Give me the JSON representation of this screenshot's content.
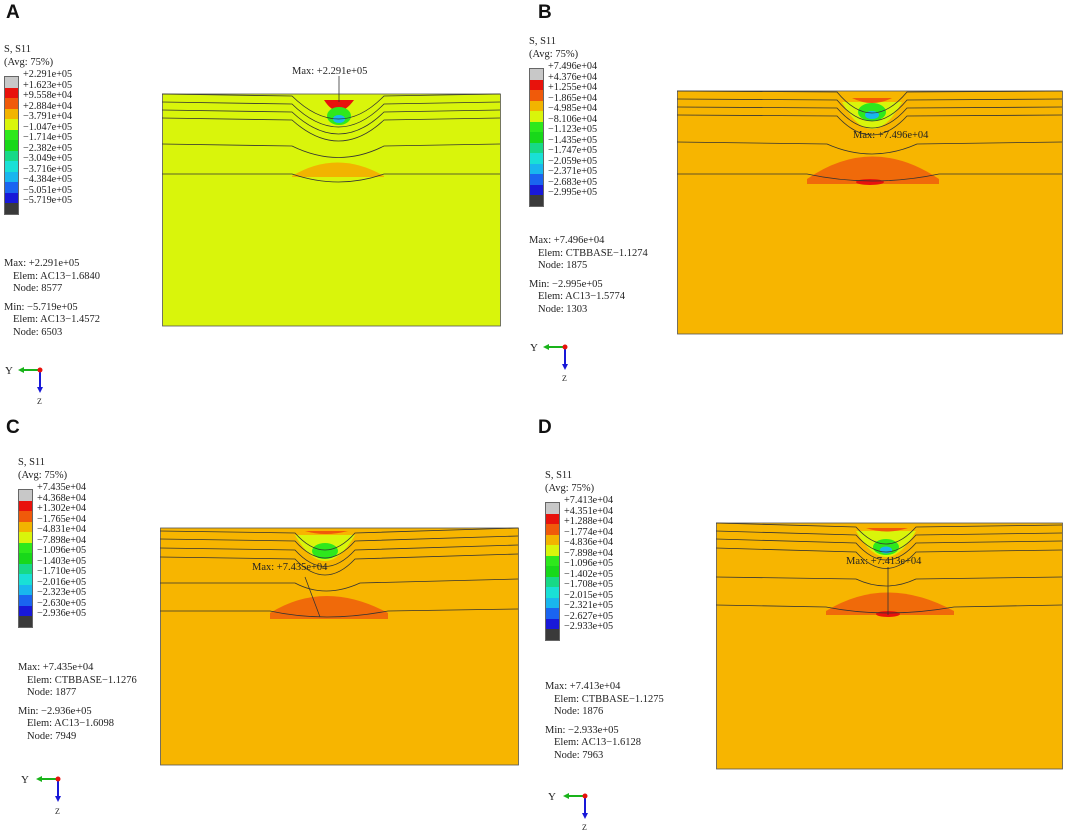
{
  "panels": [
    {
      "letter": "A",
      "legend": {
        "title1": "S, S11",
        "title2": "(Avg: 75%)",
        "values": [
          "+2.291e+05",
          "+1.623e+05",
          "+9.558e+04",
          "+2.884e+04",
          "−3.791e+04",
          "−1.047e+05",
          "−1.714e+05",
          "−2.382e+05",
          "−3.049e+05",
          "−3.716e+05",
          "−4.384e+05",
          "−5.051e+05",
          "−5.719e+05"
        ]
      },
      "max": {
        "line": "Max: +2.291e+05",
        "elem": "Elem: AC13−1.6840",
        "node": "Node: 8577"
      },
      "min": {
        "line": "Min: −5.719e+05",
        "elem": "Elem: AC13−1.4572",
        "node": "Node: 6503"
      },
      "annotation": "Max: +2.291e+05",
      "axis_y": "Y",
      "axis_z": "Z",
      "base_color": "#d9f50b",
      "band_color": "#f2b400"
    },
    {
      "letter": "B",
      "legend": {
        "title1": "S, S11",
        "title2": "(Avg: 75%)",
        "values": [
          "+7.496e+04",
          "+4.376e+04",
          "+1.255e+04",
          "−1.865e+04",
          "−4.985e+04",
          "−8.106e+04",
          "−1.123e+05",
          "−1.435e+05",
          "−1.747e+05",
          "−2.059e+05",
          "−2.371e+05",
          "−2.683e+05",
          "−2.995e+05"
        ]
      },
      "max": {
        "line": "Max: +7.496e+04",
        "elem": "Elem: CTBBASE−1.1274",
        "node": "Node: 1875"
      },
      "min": {
        "line": "Min: −2.995e+05",
        "elem": "Elem: AC13−1.5774",
        "node": "Node: 1303"
      },
      "annotation": "Max: +7.496e+04",
      "axis_y": "Y",
      "axis_z": "Z",
      "base_color": "#f7b500",
      "band_color": "#f06a0a"
    },
    {
      "letter": "C",
      "legend": {
        "title1": "S, S11",
        "title2": "(Avg: 75%)",
        "values": [
          "+7.435e+04",
          "+4.368e+04",
          "+1.302e+04",
          "−1.765e+04",
          "−4.831e+04",
          "−7.898e+04",
          "−1.096e+05",
          "−1.403e+05",
          "−1.710e+05",
          "−2.016e+05",
          "−2.323e+05",
          "−2.630e+05",
          "−2.936e+05"
        ]
      },
      "max": {
        "line": "Max: +7.435e+04",
        "elem": "Elem: CTBBASE−1.1276",
        "node": "Node: 1877"
      },
      "min": {
        "line": "Min: −2.936e+05",
        "elem": "Elem: AC13−1.6098",
        "node": "Node: 7949"
      },
      "annotation": "Max: +7.435e+04",
      "axis_y": "Y",
      "axis_z": "Z",
      "base_color": "#f7b500",
      "band_color": "#f06a0a"
    },
    {
      "letter": "D",
      "legend": {
        "title1": "S, S11",
        "title2": "(Avg: 75%)",
        "values": [
          "+7.413e+04",
          "+4.351e+04",
          "+1.288e+04",
          "−1.774e+04",
          "−4.836e+04",
          "−7.898e+04",
          "−1.096e+05",
          "−1.402e+05",
          "−1.708e+05",
          "−2.015e+05",
          "−2.321e+05",
          "−2.627e+05",
          "−2.933e+05"
        ]
      },
      "max": {
        "line": "Max: +7.413e+04",
        "elem": "Elem: CTBBASE−1.1275",
        "node": "Node: 1876"
      },
      "min": {
        "line": "Min: −2.933e+05",
        "elem": "Elem: AC13−1.6128",
        "node": "Node: 7963"
      },
      "annotation": "Max: +7.413e+04",
      "axis_y": "Y",
      "axis_z": "Z",
      "base_color": "#f7b500",
      "band_color": "#f06a0a"
    }
  ],
  "colormap": [
    "#c8c8c8",
    "#e8120c",
    "#f05a0a",
    "#f2b400",
    "#d9f50b",
    "#2ee81c",
    "#18d81a",
    "#17d987",
    "#19e0d6",
    "#19b6ee",
    "#1a64f0",
    "#1818d8",
    "#3a3a3a"
  ]
}
